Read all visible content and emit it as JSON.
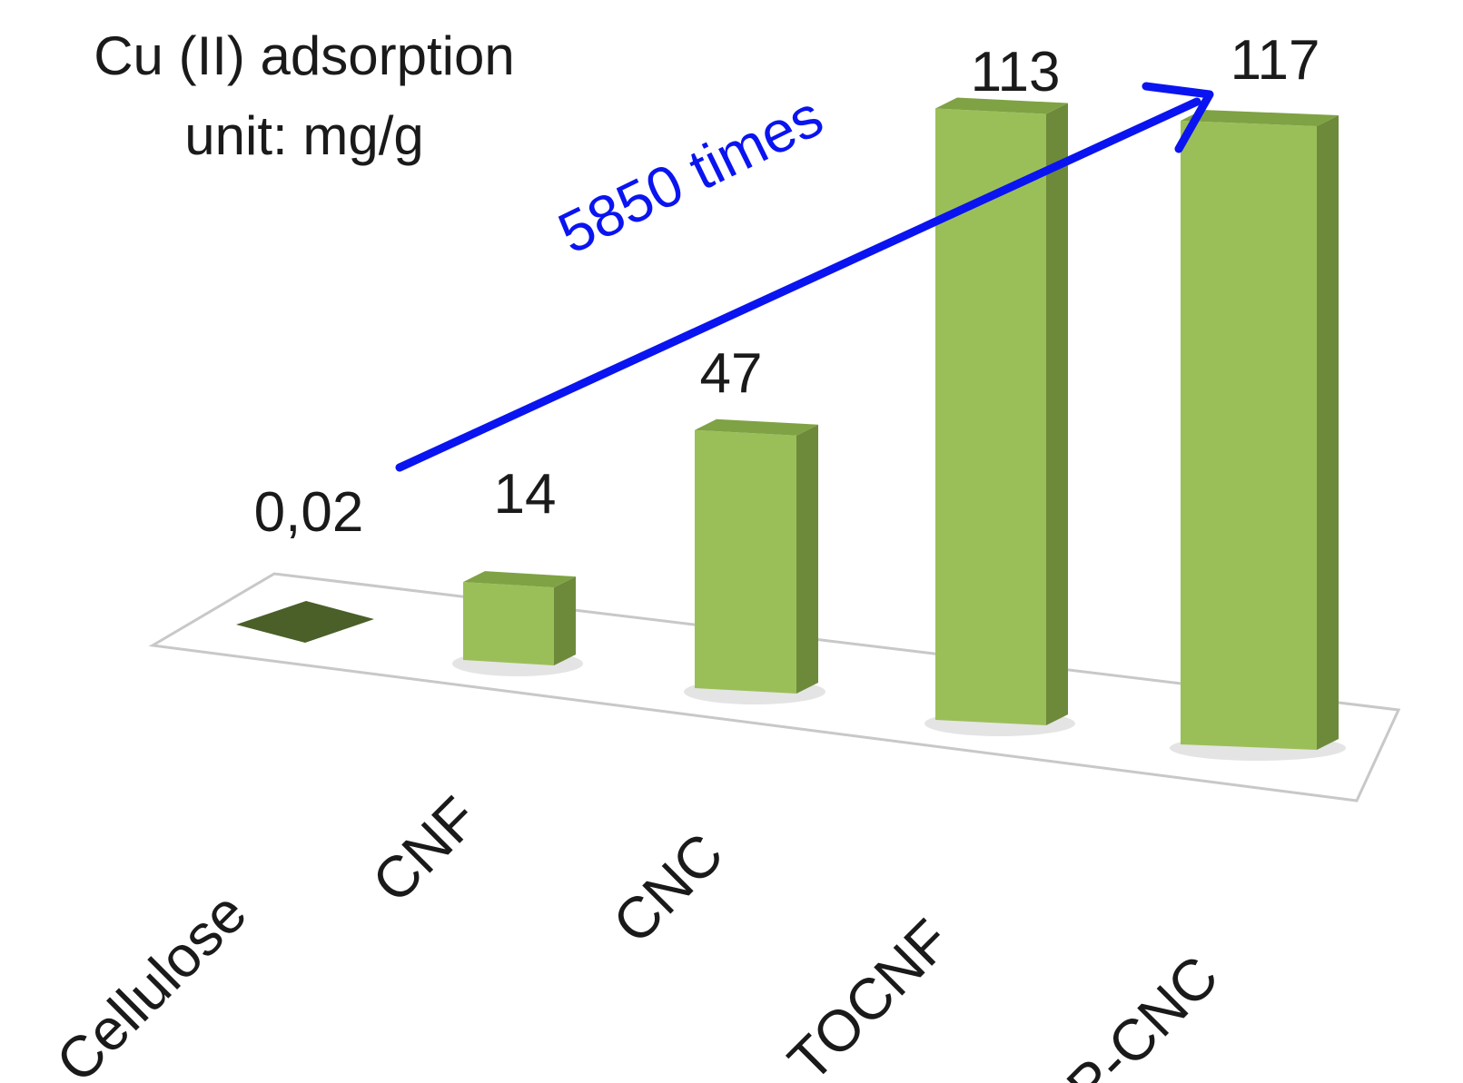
{
  "chart_data": {
    "type": "bar",
    "title": "Cu (II) adsorption",
    "subtitle": "unit: mg/g",
    "categories": [
      "Cellulose",
      "CNF",
      "CNC",
      "TOCNF",
      "P-CNC"
    ],
    "values": [
      0.02,
      14,
      47,
      113,
      117
    ],
    "value_labels": [
      "0,02",
      "14",
      "47",
      "113",
      "117"
    ],
    "xlabel": "",
    "ylabel": "",
    "ylim": [
      0,
      117
    ],
    "grid": false,
    "legend": "none",
    "annotation": {
      "text": "5850 times",
      "from_category": "Cellulose",
      "to_category": "P-CNC"
    },
    "colors": {
      "bar_front": "#9bbf58",
      "bar_side": "#6d8a3b",
      "bar_top": "#7fa244",
      "bar_empty_top": "#4b5f29",
      "arrow": "#0a14f0",
      "floor_stroke": "#c8c8c8"
    }
  }
}
